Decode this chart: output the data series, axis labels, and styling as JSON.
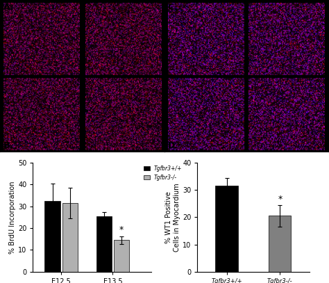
{
  "panel_B": {
    "groups": [
      "E12.5",
      "E13.5"
    ],
    "series": [
      {
        "label": "Tgfbr3+/+",
        "color": "#000000",
        "values": [
          32.5,
          25.5
        ],
        "errors": [
          8.0,
          2.0
        ]
      },
      {
        "label": "Tgfbr3-/-",
        "color": "#b0b0b0",
        "values": [
          31.5,
          14.5
        ],
        "errors": [
          7.0,
          1.8
        ]
      }
    ],
    "ylabel": "% BrdU Incorporation",
    "ylim": [
      0,
      50
    ],
    "yticks": [
      0,
      10,
      20,
      30,
      40,
      50
    ],
    "asterisk_group": 1,
    "asterisk_series": 1,
    "legend_labels": [
      "Tgfbr3+/+",
      "Tgfbr3-/-"
    ]
  },
  "panel_D": {
    "groups": [
      "Tgfbr3+/+",
      "Tgfbr3-/-"
    ],
    "series": [
      {
        "label": "Tgfbr3+/+",
        "color": "#000000",
        "values": [
          31.5
        ],
        "errors": [
          3.0
        ]
      },
      {
        "label": "Tgfbr3-/-",
        "color": "#808080",
        "values": [
          20.5
        ],
        "errors": [
          4.0
        ]
      }
    ],
    "ylabel": "% WT1 Positive\nCells in Myocardium",
    "ylim": [
      0,
      40
    ],
    "yticks": [
      0,
      10,
      20,
      30,
      40
    ],
    "asterisk_bar": 1
  },
  "fig_width": 4.74,
  "fig_height": 4.07,
  "dpi": 100,
  "background_color": "#ffffff"
}
